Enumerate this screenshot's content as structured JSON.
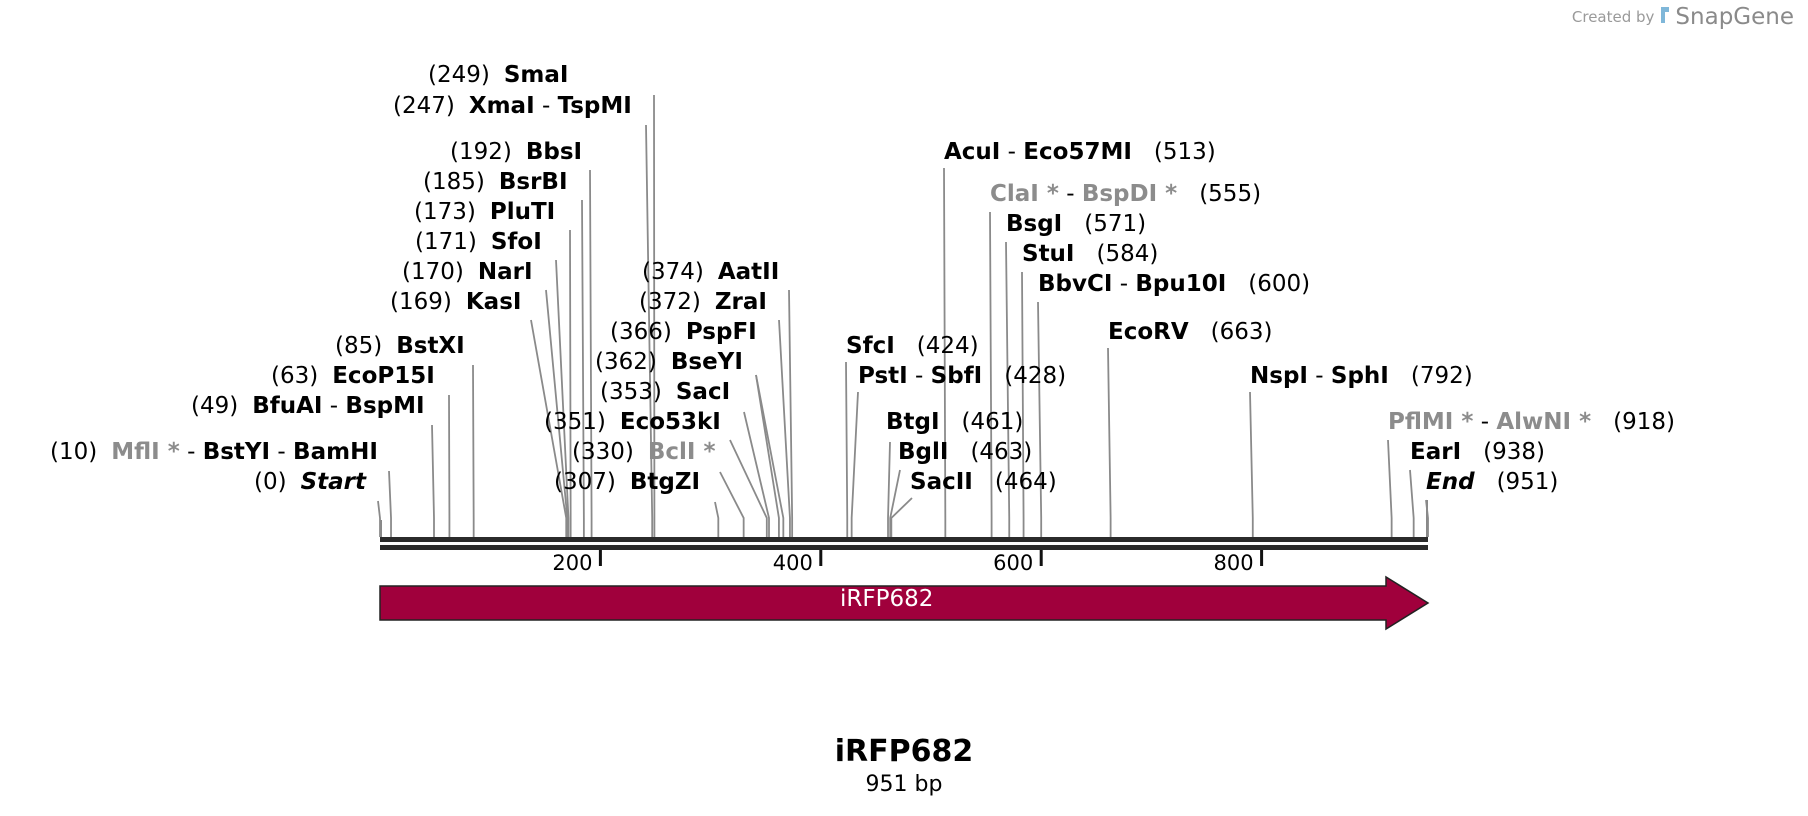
{
  "credit": {
    "created_by": "Created by",
    "brand": "SnapGene"
  },
  "map": {
    "name": "iRFP682",
    "length_label": "951 bp",
    "length_bp": 951,
    "backbone_color": "#2b2b2b",
    "axis_ticks": [
      "200",
      "400",
      "600",
      "800"
    ],
    "feature": {
      "name": "iRFP682",
      "start": 1,
      "end": 951,
      "direction": "forward",
      "color": "#a0003c"
    },
    "sites": [
      {
        "pos": "(249)",
        "bp": 249,
        "names": [
          {
            "text": "SmaI"
          }
        ]
      },
      {
        "pos": "(247)",
        "bp": 247,
        "names": [
          {
            "text": "XmaI"
          },
          {
            "text": "TspMI"
          }
        ]
      },
      {
        "pos": "(192)",
        "bp": 192,
        "names": [
          {
            "text": "BbsI"
          }
        ]
      },
      {
        "pos": "(185)",
        "bp": 185,
        "names": [
          {
            "text": "BsrBI"
          }
        ]
      },
      {
        "pos": "(173)",
        "bp": 173,
        "names": [
          {
            "text": "PluTI"
          }
        ]
      },
      {
        "pos": "(171)",
        "bp": 171,
        "names": [
          {
            "text": "SfoI"
          }
        ]
      },
      {
        "pos": "(170)",
        "bp": 170,
        "names": [
          {
            "text": "NarI"
          }
        ]
      },
      {
        "pos": "(169)",
        "bp": 169,
        "names": [
          {
            "text": "KasI"
          }
        ]
      },
      {
        "pos": "(85)",
        "bp": 85,
        "names": [
          {
            "text": "BstXI"
          }
        ]
      },
      {
        "pos": "(63)",
        "bp": 63,
        "names": [
          {
            "text": "EcoP15I"
          }
        ]
      },
      {
        "pos": "(49)",
        "bp": 49,
        "names": [
          {
            "text": "BfuAI"
          },
          {
            "text": "BspMI"
          }
        ]
      },
      {
        "pos": "(10)",
        "bp": 10,
        "names": [
          {
            "text": "MflI",
            "gray": true,
            "star": true
          },
          {
            "text": "BstYI"
          },
          {
            "text": "BamHI"
          }
        ]
      },
      {
        "pos": "(0)",
        "bp": 0,
        "names": [
          {
            "text": "Start",
            "italic": true
          }
        ]
      },
      {
        "pos": "(374)",
        "bp": 374,
        "names": [
          {
            "text": "AatII"
          }
        ]
      },
      {
        "pos": "(372)",
        "bp": 372,
        "names": [
          {
            "text": "ZraI"
          }
        ]
      },
      {
        "pos": "(366)",
        "bp": 366,
        "names": [
          {
            "text": "PspFI"
          }
        ]
      },
      {
        "pos": "(362)",
        "bp": 362,
        "names": [
          {
            "text": "BseYI"
          }
        ]
      },
      {
        "pos": "(353)",
        "bp": 353,
        "names": [
          {
            "text": "SacI"
          }
        ]
      },
      {
        "pos": "(351)",
        "bp": 351,
        "names": [
          {
            "text": "Eco53kI"
          }
        ]
      },
      {
        "pos": "(330)",
        "bp": 330,
        "names": [
          {
            "text": "BclI",
            "gray": true,
            "star": true
          }
        ]
      },
      {
        "pos": "(307)",
        "bp": 307,
        "names": [
          {
            "text": "BtgZI"
          }
        ]
      },
      {
        "pos": "(513)",
        "bp": 513,
        "names": [
          {
            "text": "AcuI"
          },
          {
            "text": "Eco57MI"
          }
        ]
      },
      {
        "pos": "(555)",
        "bp": 555,
        "names": [
          {
            "text": "ClaI",
            "gray": true,
            "star": true
          },
          {
            "text": "BspDI",
            "gray": true,
            "star": true
          }
        ]
      },
      {
        "pos": "(571)",
        "bp": 571,
        "names": [
          {
            "text": "BsgI"
          }
        ]
      },
      {
        "pos": "(584)",
        "bp": 584,
        "names": [
          {
            "text": "StuI"
          }
        ]
      },
      {
        "pos": "(600)",
        "bp": 600,
        "names": [
          {
            "text": "BbvCI"
          },
          {
            "text": "Bpu10I"
          }
        ]
      },
      {
        "pos": "(424)",
        "bp": 424,
        "names": [
          {
            "text": "SfcI"
          }
        ]
      },
      {
        "pos": "(428)",
        "bp": 428,
        "names": [
          {
            "text": "PstI"
          },
          {
            "text": "SbfI"
          }
        ]
      },
      {
        "pos": "(461)",
        "bp": 461,
        "names": [
          {
            "text": "BtgI"
          }
        ]
      },
      {
        "pos": "(463)",
        "bp": 463,
        "names": [
          {
            "text": "BglI"
          }
        ]
      },
      {
        "pos": "(464)",
        "bp": 464,
        "names": [
          {
            "text": "SacII"
          }
        ]
      },
      {
        "pos": "(663)",
        "bp": 663,
        "names": [
          {
            "text": "EcoRV"
          }
        ]
      },
      {
        "pos": "(792)",
        "bp": 792,
        "names": [
          {
            "text": "NspI"
          },
          {
            "text": "SphI"
          }
        ]
      },
      {
        "pos": "(918)",
        "bp": 918,
        "names": [
          {
            "text": "PflMI",
            "gray": true,
            "star": true
          },
          {
            "text": "AlwNI",
            "gray": true,
            "star": true
          }
        ]
      },
      {
        "pos": "(938)",
        "bp": 938,
        "names": [
          {
            "text": "EarI"
          }
        ]
      },
      {
        "pos": "(951)",
        "bp": 951,
        "names": [
          {
            "text": "End",
            "italic": true
          }
        ]
      }
    ]
  }
}
